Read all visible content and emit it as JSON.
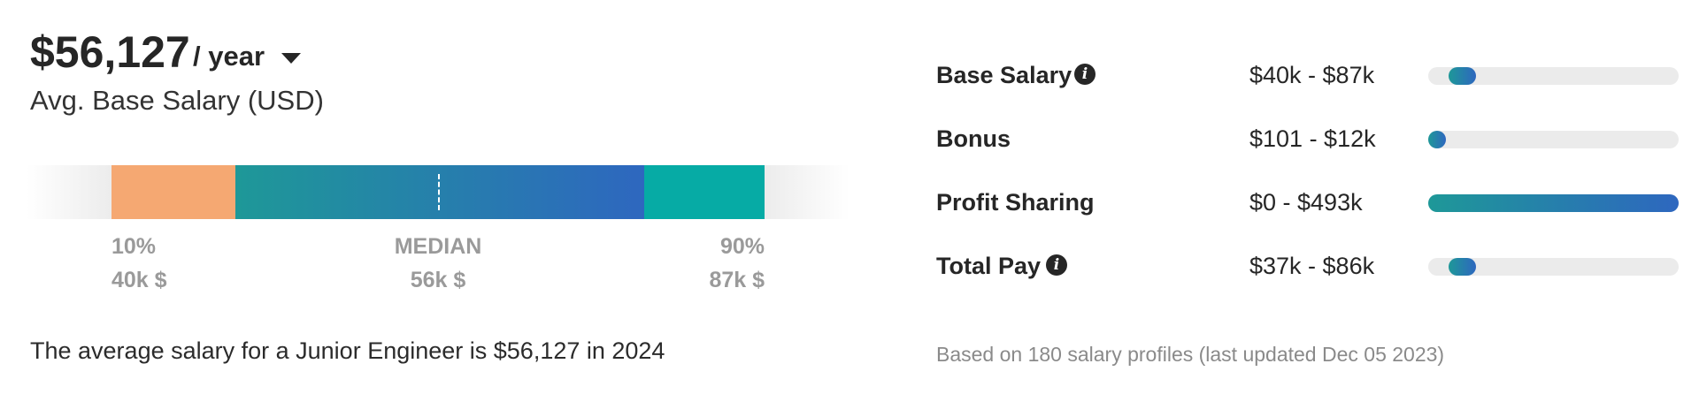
{
  "summary": {
    "amount": "$56,127",
    "period": "/ year",
    "subtitle": "Avg. Base Salary (USD)",
    "description": "The average salary for a Junior Engineer is $56,127 in 2024"
  },
  "distribution": {
    "low": {
      "label": "10%",
      "value": "40k $"
    },
    "median": {
      "label": "MEDIAN",
      "value": "56k $"
    },
    "high": {
      "label": "90%",
      "value": "87k $"
    },
    "colors": {
      "low": "#f5a872",
      "mid_start": "#1e9898",
      "mid_end": "#2e67bf",
      "high": "#06aba5"
    }
  },
  "pay_breakdown": {
    "rows": [
      {
        "label": "Base Salary",
        "has_info": true,
        "range": "$40k - $87k",
        "bar_start": 0.08,
        "bar_end": 0.19
      },
      {
        "label": "Bonus",
        "has_info": false,
        "range": "$101 - $12k",
        "bar_start": 0.0,
        "bar_end": 0.06
      },
      {
        "label": "Profit Sharing",
        "has_info": true,
        "range": "$0 - $493k",
        "bar_start": 0.0,
        "bar_end": 1.0
      },
      {
        "label": "Total Pay",
        "has_info": true,
        "range": "$37k - $86k",
        "bar_start": 0.08,
        "bar_end": 0.19
      }
    ],
    "info_glyph": "i",
    "footnote": "Based on 180 salary profiles (last updated Dec 05 2023)"
  }
}
